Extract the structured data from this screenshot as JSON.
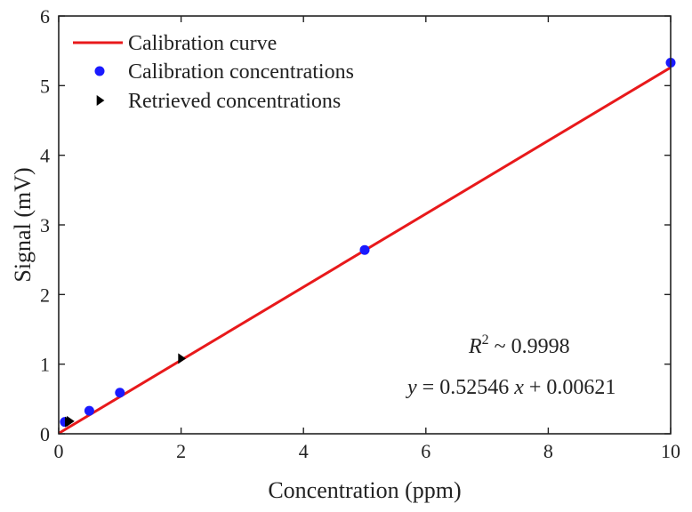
{
  "chart_data": {
    "type": "line",
    "title": "",
    "xlabel": "Concentration (ppm)",
    "ylabel": "Signal (mV)",
    "xlim": [
      0,
      10
    ],
    "ylim": [
      0,
      6
    ],
    "xticks": [
      0,
      2,
      4,
      6,
      8,
      10
    ],
    "yticks": [
      0,
      1,
      2,
      3,
      4,
      5,
      6
    ],
    "grid": false,
    "legend_position": "top-left",
    "series": [
      {
        "name": "Calibration curve",
        "kind": "line",
        "color": "#e8191b",
        "x": [
          0,
          10
        ],
        "y": [
          0.00621,
          5.26081
        ]
      },
      {
        "name": "Calibration concentrations",
        "kind": "scatter",
        "marker": "circle",
        "color": "#1a1aff",
        "x": [
          0.1,
          0.5,
          1,
          5,
          10
        ],
        "y": [
          0.17,
          0.33,
          0.59,
          2.64,
          5.33
        ]
      },
      {
        "name": "Retrieved concentrations",
        "kind": "scatter",
        "marker": "triangle-right",
        "color": "#000000",
        "x": [
          0.15,
          0.18,
          2.0
        ],
        "y": [
          0.17,
          0.18,
          1.08
        ]
      }
    ],
    "annotations": {
      "r2": {
        "prefix": "R",
        "sup": "2",
        "text": " ~ 0.9998"
      },
      "equation": {
        "y": "y",
        "eq": " = 0.52546 ",
        "x": "x",
        "rest": " + 0.00621"
      }
    }
  }
}
